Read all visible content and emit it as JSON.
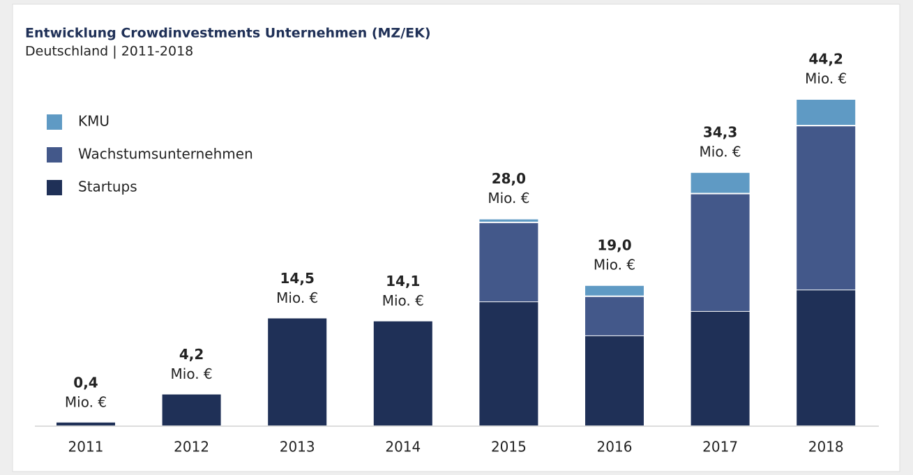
{
  "chart_data": {
    "type": "stacked_bar",
    "title": "Entwicklung Crowdinvestments Unternehmen (MZ/EK)",
    "subtitle": "Deutschland | 2011-2018",
    "categories": [
      "2011",
      "2012",
      "2013",
      "2014",
      "2015",
      "2016",
      "2017",
      "2018"
    ],
    "series": [
      {
        "name": "Startups",
        "color": "#1f3057",
        "values": [
          0.4,
          4.2,
          14.5,
          14.1,
          16.7,
          12.1,
          15.4,
          18.3
        ]
      },
      {
        "name": "Wachstumsunternehmen",
        "color": "#43588a",
        "values": [
          null,
          null,
          null,
          null,
          10.8,
          5.4,
          16.0,
          22.3
        ]
      },
      {
        "name": "KMU",
        "color": "#5f9ac4",
        "values": [
          null,
          null,
          null,
          null,
          0.5,
          1.5,
          2.9,
          3.6
        ]
      }
    ],
    "totals": [
      0.4,
      4.2,
      14.5,
      14.1,
      28.0,
      19.0,
      34.3,
      44.2
    ],
    "total_labels": [
      "0,4",
      "4,2",
      "14,5",
      "14,1",
      "28,0",
      "19,0",
      "34,3",
      "44,2"
    ],
    "unit_label": "Mio. €",
    "legend": "top-left"
  }
}
